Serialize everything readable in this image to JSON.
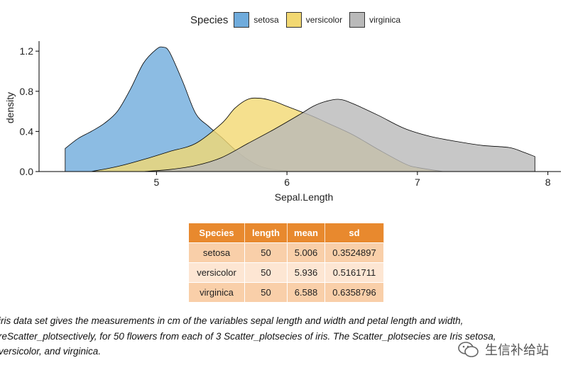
{
  "chart_data": {
    "type": "area",
    "subtype": "density",
    "title": "",
    "xlabel": "Sepal.Length",
    "ylabel": "density",
    "xlim": [
      4.1,
      8.1
    ],
    "ylim": [
      0,
      1.3
    ],
    "x_ticks": [
      5,
      6,
      7,
      8
    ],
    "y_ticks": [
      0.0,
      0.4,
      0.8,
      1.2
    ],
    "y_tick_labels": [
      "0.0",
      "0.4",
      "0.8",
      "1.2"
    ],
    "legend_title": "Species",
    "legend_position": "top",
    "series": [
      {
        "name": "setosa",
        "color": "#6fabdc",
        "x": [
          4.3,
          4.4,
          4.5,
          4.6,
          4.7,
          4.8,
          4.9,
          5.0,
          5.05,
          5.1,
          5.2,
          5.3,
          5.4,
          5.5,
          5.6,
          5.7,
          5.8,
          5.9,
          6.0
        ],
        "y": [
          0.23,
          0.33,
          0.4,
          0.48,
          0.6,
          0.82,
          1.08,
          1.22,
          1.24,
          1.19,
          0.9,
          0.58,
          0.45,
          0.34,
          0.22,
          0.12,
          0.05,
          0.02,
          0.01
        ]
      },
      {
        "name": "versicolor",
        "color": "#f2d872",
        "x": [
          4.5,
          4.7,
          4.9,
          5.1,
          5.3,
          5.5,
          5.6,
          5.7,
          5.8,
          5.9,
          6.0,
          6.1,
          6.2,
          6.3,
          6.5,
          6.7,
          6.9,
          7.0,
          7.2
        ],
        "y": [
          0.0,
          0.05,
          0.12,
          0.2,
          0.28,
          0.48,
          0.63,
          0.72,
          0.73,
          0.7,
          0.65,
          0.6,
          0.55,
          0.49,
          0.37,
          0.22,
          0.08,
          0.04,
          0.0
        ]
      },
      {
        "name": "virginica",
        "color": "#b9b9b9",
        "x": [
          4.9,
          5.1,
          5.3,
          5.5,
          5.7,
          5.9,
          6.1,
          6.2,
          6.3,
          6.4,
          6.5,
          6.7,
          6.9,
          7.1,
          7.3,
          7.5,
          7.7,
          7.8,
          7.9
        ],
        "y": [
          0.0,
          0.02,
          0.06,
          0.14,
          0.28,
          0.42,
          0.57,
          0.65,
          0.7,
          0.72,
          0.68,
          0.56,
          0.43,
          0.35,
          0.3,
          0.26,
          0.24,
          0.2,
          0.15
        ]
      }
    ]
  },
  "table": {
    "headers": [
      "Species",
      "length",
      "mean",
      "sd"
    ],
    "rows": [
      [
        "setosa",
        "50",
        "5.006",
        "0.3524897"
      ],
      [
        "versicolor",
        "50",
        "5.936",
        "0.5161711"
      ],
      [
        "virginica",
        "50",
        "6.588",
        "0.6358796"
      ]
    ]
  },
  "caption": {
    "lines": [
      "iris data set gives the measurements in cm of the variables sepal length and width and petal length and width,",
      "reScatter_plotsectively, for 50 flowers from each of 3 Scatter_plotsecies of iris. The Scatter_plotsecies are Iris setosa,",
      "versicolor, and virginica."
    ]
  },
  "watermark": {
    "text": "生信补给站"
  },
  "colors": {
    "header": "#e8892e",
    "row_odd": "#f9cfa9",
    "row_even": "#fde6d3"
  }
}
